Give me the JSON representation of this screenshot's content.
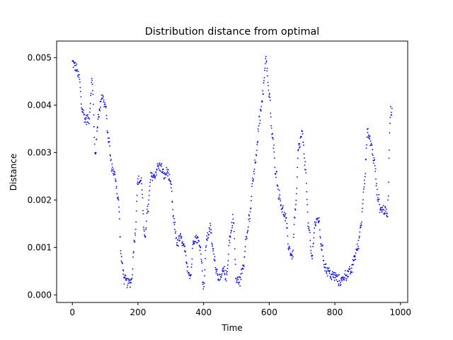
{
  "chart_data": {
    "type": "scatter",
    "title": "Distribution distance from optimal",
    "xlabel": "Time",
    "ylabel": "Distance",
    "xlim": [
      -48,
      1022
    ],
    "ylim": [
      -0.00016,
      0.00535
    ],
    "xticks": [
      0,
      200,
      400,
      600,
      800,
      1000
    ],
    "yticks": [
      0.0,
      0.001,
      0.002,
      0.003,
      0.004,
      0.005
    ],
    "xtick_labels": [
      "0",
      "200",
      "400",
      "600",
      "800",
      "1000"
    ],
    "ytick_labels": [
      "0.000",
      "0.001",
      "0.002",
      "0.003",
      "0.004",
      "0.005"
    ],
    "marker_color": "#0000ff",
    "grid": false,
    "series": [
      {
        "anchors_x": [
          0,
          10,
          20,
          30,
          40,
          50,
          60,
          70,
          80,
          90,
          100,
          110,
          120,
          130,
          140,
          150,
          160,
          170,
          180,
          190,
          200,
          210,
          220,
          230,
          240,
          250,
          260,
          270,
          280,
          290,
          300,
          310,
          320,
          330,
          340,
          350,
          360,
          370,
          380,
          390,
          400,
          410,
          420,
          430,
          440,
          450,
          460,
          470,
          480,
          490,
          500,
          510,
          520,
          530,
          540,
          550,
          560,
          570,
          580,
          590,
          600,
          610,
          620,
          630,
          640,
          650,
          660,
          670,
          680,
          690,
          700,
          710,
          720,
          730,
          740,
          750,
          760,
          770,
          780,
          790,
          800,
          810,
          820,
          830,
          840,
          850,
          860,
          870,
          880,
          890,
          900,
          910,
          920,
          930,
          940,
          950,
          960,
          970
        ],
        "anchors_y": [
          0.0049,
          0.0048,
          0.0046,
          0.0039,
          0.0037,
          0.0037,
          0.0045,
          0.003,
          0.0038,
          0.0042,
          0.004,
          0.0033,
          0.0027,
          0.0025,
          0.002,
          0.0007,
          0.0003,
          0.00025,
          0.0003,
          0.0012,
          0.0024,
          0.0024,
          0.0012,
          0.0018,
          0.0025,
          0.0025,
          0.0027,
          0.0027,
          0.0025,
          0.0026,
          0.0023,
          0.0015,
          0.0011,
          0.0012,
          0.001,
          0.0006,
          0.0004,
          0.0012,
          0.0012,
          0.001,
          0.0002,
          0.0012,
          0.0014,
          0.0009,
          0.0005,
          0.0003,
          0.0005,
          0.0004,
          0.0012,
          0.0016,
          0.0003,
          0.0003,
          0.0006,
          0.0012,
          0.0016,
          0.0024,
          0.0029,
          0.0037,
          0.0042,
          0.005,
          0.0042,
          0.0033,
          0.0026,
          0.0021,
          0.0018,
          0.0016,
          0.001,
          0.0008,
          0.0018,
          0.0031,
          0.0034,
          0.0027,
          0.0014,
          0.0008,
          0.0015,
          0.0016,
          0.001,
          0.0006,
          0.0005,
          0.0004,
          0.0004,
          0.0003,
          0.0003,
          0.0004,
          0.00045,
          0.0005,
          0.0008,
          0.001,
          0.0015,
          0.0024,
          0.0034,
          0.0032,
          0.0028,
          0.0021,
          0.0018,
          0.0018,
          0.0017,
          0.0039
        ],
        "jitter": 0.0002,
        "n_points": 975
      }
    ]
  }
}
